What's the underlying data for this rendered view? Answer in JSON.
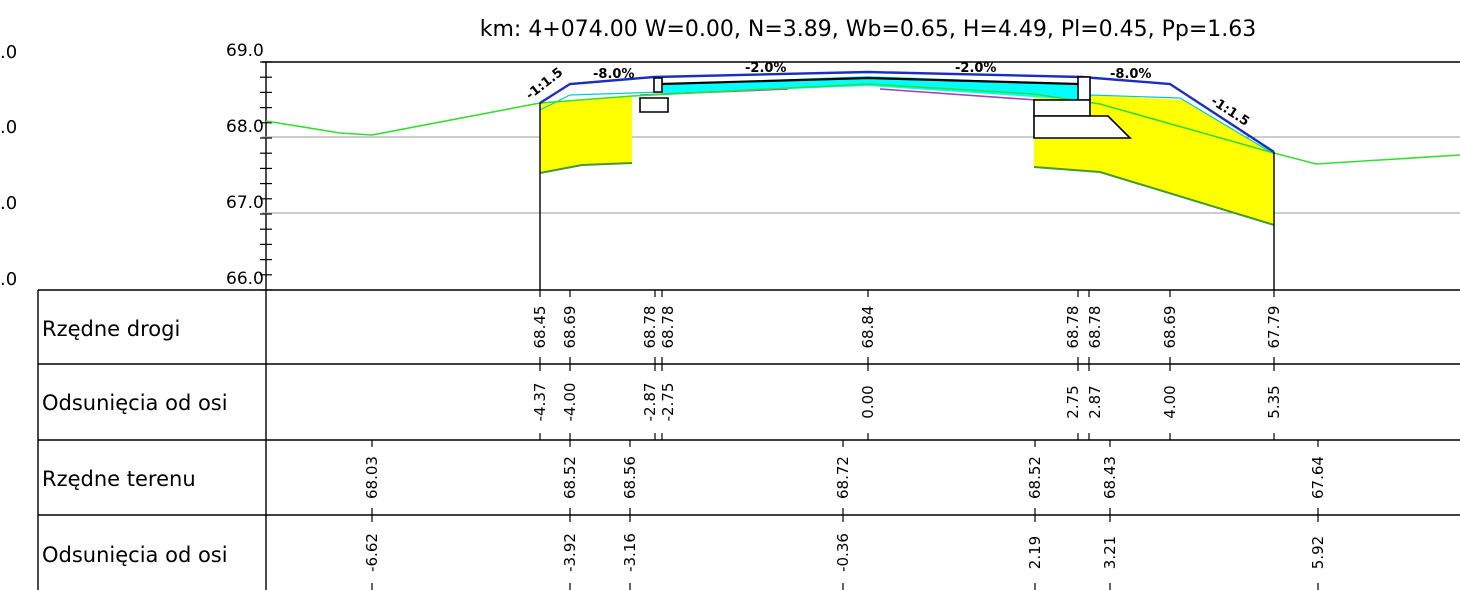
{
  "title": "km: 4+074.00  W=0.00,  N=3.89,  Wb=0.65,  H=4.49,  Pl=0.45,  Pp=1.63",
  "scale": {
    "left_edge_labels": [
      ".0",
      ".0",
      ".0",
      ".0"
    ],
    "labels": [
      "69.0",
      "68.0",
      "67.0",
      "66.0"
    ]
  },
  "annotations": {
    "slope_left": "-1:1.5",
    "cross_left": "-8.0%",
    "top_left": "-2.0%",
    "top_right": "-2.0%",
    "cross_right": "-8.0%",
    "slope_right": "-1:1.5"
  },
  "table": {
    "row_labels": [
      "Rzędne drogi",
      "Odsunięcia od osi",
      "Rzędne terenu",
      "Odsunięcia od osi"
    ],
    "road_elevations": [
      "68.45",
      "68.69",
      "68.78",
      "68.78",
      "68.84",
      "68.78",
      "68.78",
      "68.69",
      "67.79"
    ],
    "road_offsets": [
      "-4.37",
      "-4.00",
      "-2.87",
      "-2.75",
      "0.00",
      "2.75",
      "2.87",
      "4.00",
      "5.35"
    ],
    "terrain_elevations": [
      "68.03",
      "68.52",
      "68.56",
      "68.72",
      "68.52",
      "68.43",
      "67.64"
    ],
    "terrain_offsets": [
      "-6.62",
      "-3.92",
      "-3.16",
      "-0.36",
      "2.19",
      "3.21",
      "5.92"
    ]
  }
}
